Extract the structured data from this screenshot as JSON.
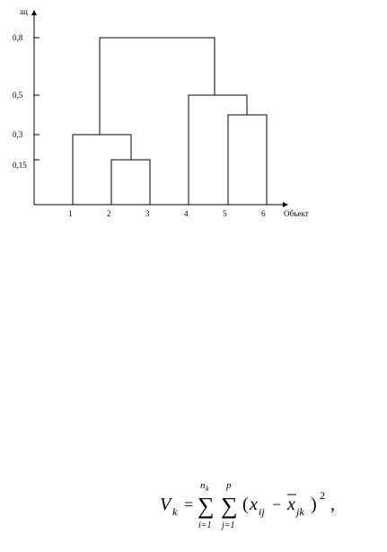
{
  "dendrogram": {
    "axis": {
      "y_label": "aц",
      "x_label": "Объект"
    },
    "y_ticks": [
      "0,8",
      "0,5",
      "0,3",
      "0,15"
    ],
    "objects": [
      "1",
      "2",
      "3",
      "4",
      "5",
      "6"
    ],
    "merges": [
      {
        "left": "2",
        "right": "3",
        "height": 0.15
      },
      {
        "left": "1",
        "right": "2-3",
        "height": 0.3
      },
      {
        "left": "5",
        "right": "6",
        "height": 0.4
      },
      {
        "left": "4",
        "right": "5-6",
        "height": 0.5
      },
      {
        "left": "1-2-3",
        "right": "4-5-6",
        "height": 0.8
      }
    ]
  },
  "formula": {
    "lhs_var": "V",
    "lhs_sub": "k",
    "equals": "=",
    "sum1_upper": "n",
    "sum1_upper_sub": "k",
    "sum1_lower": "i=1",
    "sum2_upper": "p",
    "sum2_lower": "j=1",
    "sigma": "∑",
    "open_paren": "(",
    "x_var": "x",
    "x_sub": "ij",
    "minus": "−",
    "xbar_var": "x",
    "xbar_sub": "jk",
    "close_paren": ")",
    "exponent": "2",
    "trailing": ","
  }
}
